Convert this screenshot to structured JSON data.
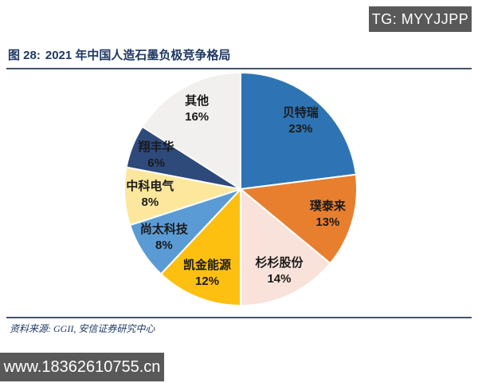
{
  "watermarks": {
    "tg_badge": "TG: MYYJJPP",
    "url_badge": "www.18362610755.cn"
  },
  "header": {
    "figure_label": "图 28:",
    "title": "2021 年中国人造石墨负极竞争格局"
  },
  "footer": {
    "source": "资料来源: GGII, 安信证券研究中心"
  },
  "chart_data": {
    "type": "pie",
    "title": "2021 年中国人造石墨负极竞争格局",
    "start_angle_deg": 0,
    "direction": "clockwise",
    "slice_stroke_color": "#FFFFFF",
    "label_position": "inside",
    "label_radius_fraction": 0.78,
    "slices": [
      {
        "label": "贝特瑞",
        "value": 23,
        "display": "23%",
        "color": "#2E74B5"
      },
      {
        "label": "璞泰来",
        "value": 13,
        "display": "13%",
        "color": "#E87F2E"
      },
      {
        "label": "杉杉股份",
        "value": 14,
        "display": "14%",
        "color": "#F8E2D9"
      },
      {
        "label": "凯金能源",
        "value": 12,
        "display": "12%",
        "color": "#FDC011"
      },
      {
        "label": "尚太科技",
        "value": 8,
        "display": "8%",
        "color": "#5B9BD5"
      },
      {
        "label": "中科电气",
        "value": 8,
        "display": "8%",
        "color": "#FCE79D"
      },
      {
        "label": "翔丰华",
        "value": 6,
        "display": "6%",
        "color": "#2E4A7B"
      },
      {
        "label": "其他",
        "value": 16,
        "display": "16%",
        "color": "#F1F0EE"
      }
    ]
  }
}
